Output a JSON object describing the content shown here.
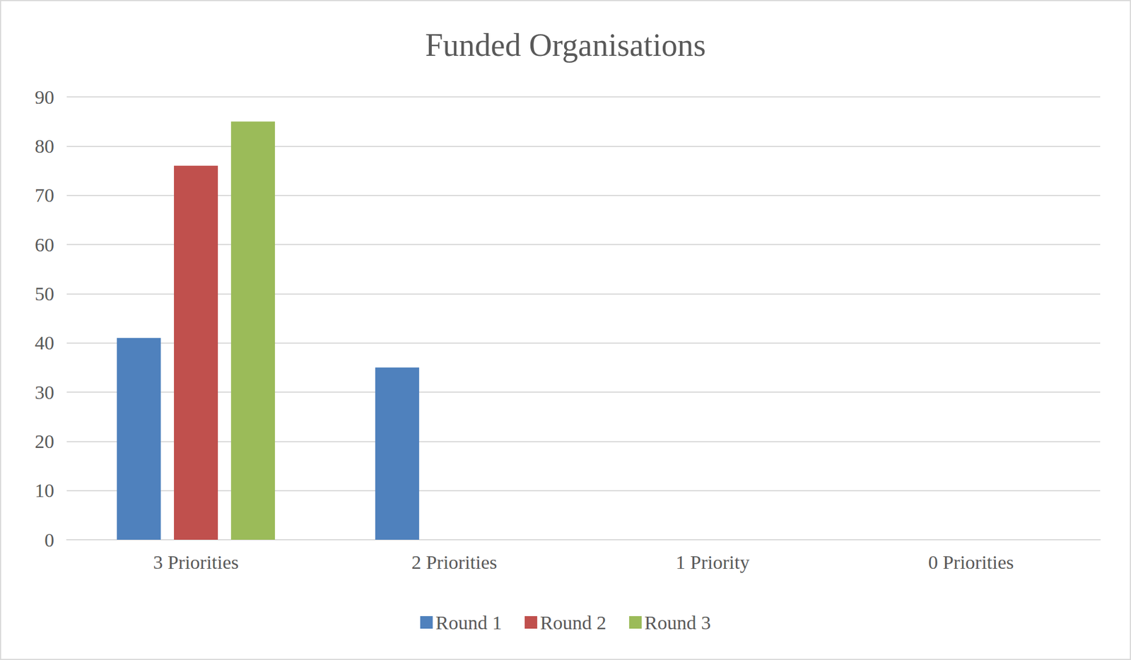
{
  "chart_data": {
    "type": "bar",
    "title": "Funded Organisations",
    "categories": [
      "3 Priorities",
      "2 Priorities",
      "1 Priority",
      "0 Priorities"
    ],
    "series": [
      {
        "name": "Round 1",
        "color": "#4f81bd",
        "values": [
          41,
          35,
          0,
          0
        ]
      },
      {
        "name": "Round 2",
        "color": "#c0504d",
        "values": [
          76,
          0,
          0,
          0
        ]
      },
      {
        "name": "Round 3",
        "color": "#9bbb59",
        "values": [
          85,
          0,
          0,
          0
        ]
      }
    ],
    "ylim": [
      0,
      90
    ],
    "yticks": [
      0,
      10,
      20,
      30,
      40,
      50,
      60,
      70,
      80,
      90
    ],
    "grid": true,
    "legend": "bottom"
  }
}
